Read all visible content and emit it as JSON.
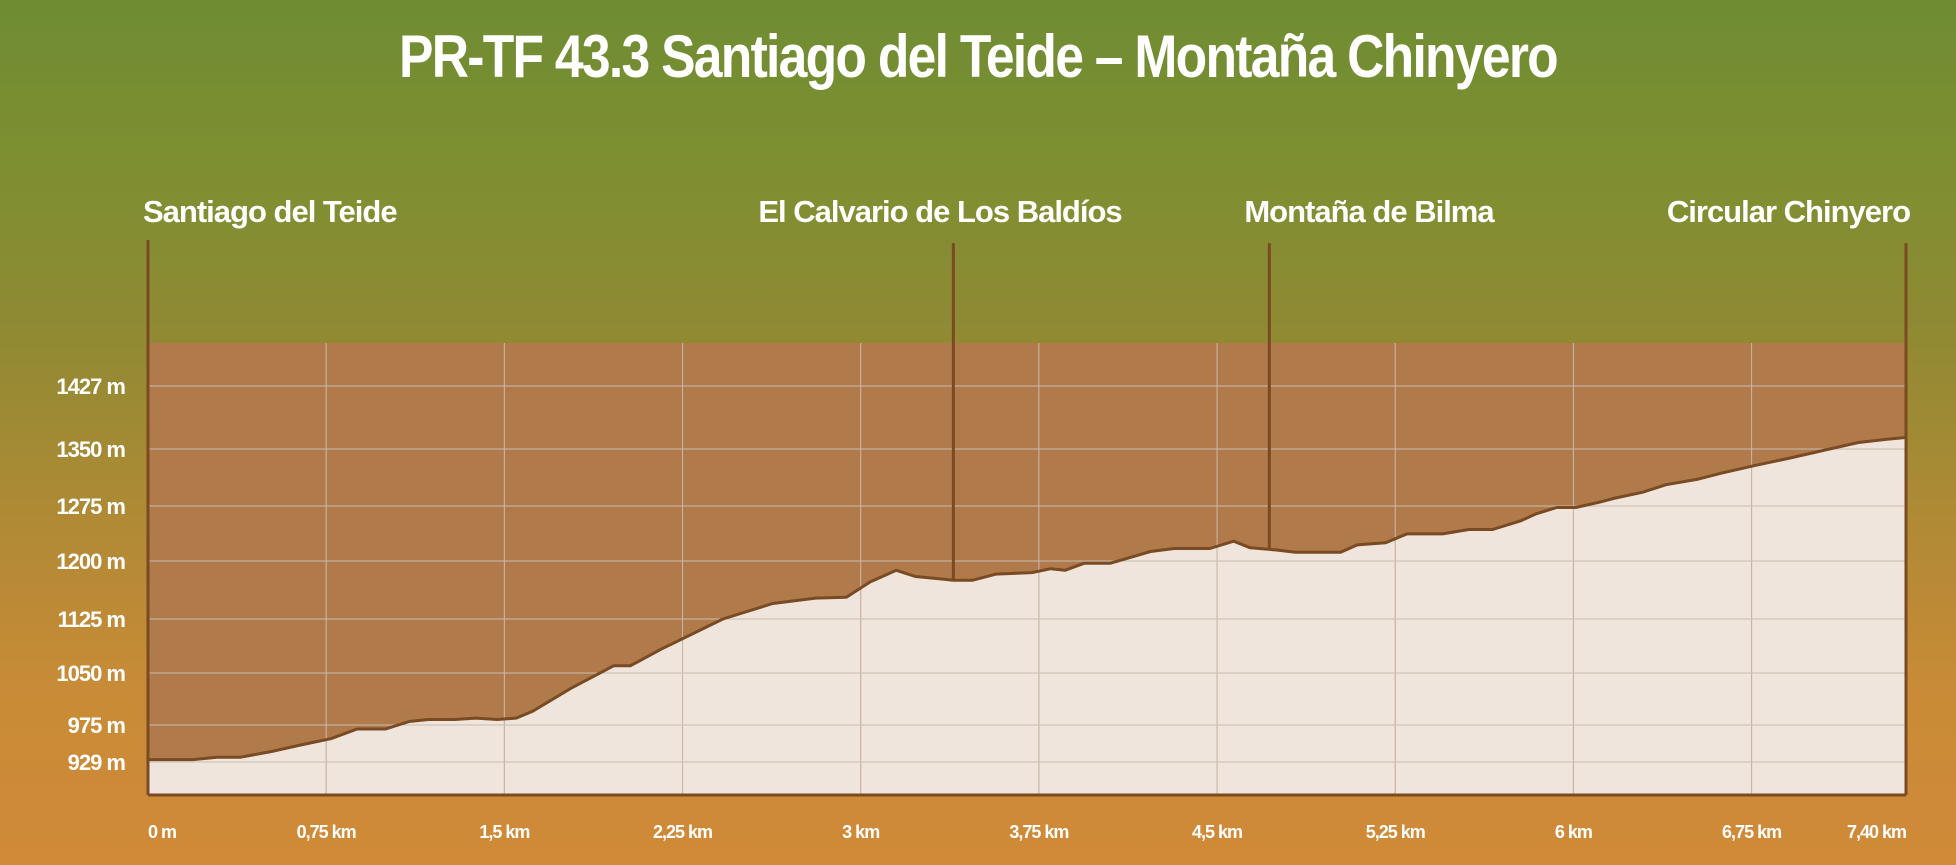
{
  "title": "PR-TF 43.3 Santiago del Teide – Montaña Chinyero",
  "colors": {
    "background_top": "#6f8c32",
    "background_bottom": "#d08a38",
    "plot_background": "#b07a4a",
    "profile_fill": "#efe5dc",
    "profile_stroke": "#7a4a22",
    "waypoint_line": "#7a4a22",
    "grid": "#c9bdb2",
    "text": "#ffffff"
  },
  "chart_data": {
    "type": "area",
    "title": "PR-TF 43.3 Santiago del Teide – Montaña Chinyero",
    "xlabel": "",
    "ylabel": "",
    "x_unit": "km",
    "y_unit": "m",
    "xlim": [
      0,
      7.4
    ],
    "ylim": [
      929,
      1427
    ],
    "grid": true,
    "x_ticks": [
      {
        "value": 0,
        "label": "0 m"
      },
      {
        "value": 0.75,
        "label": "0,75 km"
      },
      {
        "value": 1.5,
        "label": "1,5 km"
      },
      {
        "value": 2.25,
        "label": "2,25 km"
      },
      {
        "value": 3,
        "label": "3 km"
      },
      {
        "value": 3.75,
        "label": "3,75 km"
      },
      {
        "value": 4.5,
        "label": "4,5 km"
      },
      {
        "value": 5.25,
        "label": "5,25 km"
      },
      {
        "value": 6,
        "label": "6 km"
      },
      {
        "value": 6.75,
        "label": "6,75 km"
      },
      {
        "value": 7.4,
        "label": "7,40 km"
      }
    ],
    "y_ticks": [
      {
        "value": 929,
        "label": "929 m"
      },
      {
        "value": 975,
        "label": "975 m"
      },
      {
        "value": 1050,
        "label": "1050 m"
      },
      {
        "value": 1125,
        "label": "1125 m"
      },
      {
        "value": 1200,
        "label": "1200 m"
      },
      {
        "value": 1275,
        "label": "1275 m"
      },
      {
        "value": 1350,
        "label": "1350 m"
      },
      {
        "value": 1427,
        "label": "1427 m"
      }
    ],
    "waypoints": [
      {
        "label": "Santiago del Teide",
        "x": 0
      },
      {
        "label": "El Calvario de Los Baldíos",
        "x": 3.39
      },
      {
        "label": "Montaña de Bilma",
        "x": 4.72
      },
      {
        "label": "Circular Chinyero",
        "x": 7.4
      }
    ],
    "series": [
      {
        "x": [
          0,
          0.19,
          0.29,
          0.39,
          0.52,
          0.64,
          0.77,
          0.88,
          1.0,
          1.1,
          1.18,
          1.29,
          1.38,
          1.47,
          1.55,
          1.62,
          1.78,
          1.96,
          2.03,
          2.16,
          2.42,
          2.63,
          2.81,
          2.94,
          3.04,
          3.15,
          3.23,
          3.33,
          3.39,
          3.47,
          3.57,
          3.72,
          3.8,
          3.86,
          3.94,
          4.05,
          4.22,
          4.32,
          4.47,
          4.57,
          4.64,
          4.75,
          4.83,
          5.02,
          5.09,
          5.21,
          5.3,
          5.45,
          5.56,
          5.66,
          5.78,
          5.84,
          5.93,
          6.01,
          6.11,
          6.17,
          6.29,
          6.39,
          6.52,
          6.62,
          6.76,
          6.91,
          7.05,
          7.2,
          7.32,
          7.4
        ],
        "y": [
          932,
          932,
          935,
          935,
          942,
          950,
          958,
          970,
          970,
          980,
          983,
          983,
          985,
          983,
          985,
          995,
          1028,
          1060,
          1060,
          1083,
          1125,
          1145,
          1152,
          1153,
          1173,
          1188,
          1180,
          1177,
          1175,
          1175,
          1183,
          1185,
          1190,
          1188,
          1197,
          1197,
          1213,
          1217,
          1217,
          1227,
          1218,
          1215,
          1212,
          1212,
          1222,
          1225,
          1237,
          1237,
          1243,
          1243,
          1255,
          1264,
          1273,
          1273,
          1280,
          1285,
          1293,
          1303,
          1310,
          1318,
          1328,
          1338,
          1348,
          1358,
          1362,
          1364
        ]
      }
    ]
  }
}
